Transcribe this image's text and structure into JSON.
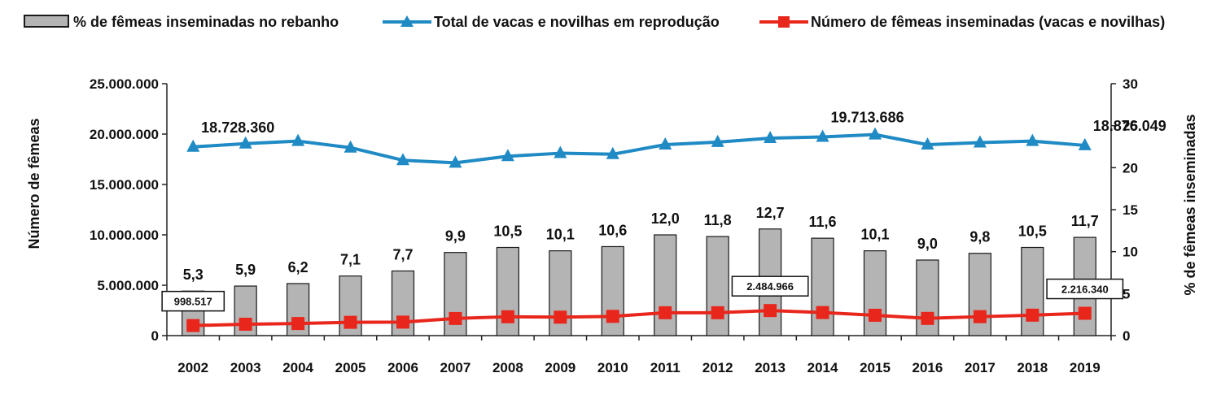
{
  "legend": {
    "bars_label": "% de fêmeas inseminadas no rebanho",
    "total_label": "Total de vacas e novilhas em reprodução",
    "insem_label": "Número de fêmeas inseminadas (vacas e novilhas)"
  },
  "colors": {
    "bar_fill": "#b4b4b4",
    "bar_stroke": "#1a1a1a",
    "total_line": "#1f8ac4",
    "insem_line": "#e8261c"
  },
  "chart_data": {
    "type": "bar+line",
    "categories": [
      "2002",
      "2003",
      "2004",
      "2005",
      "2006",
      "2007",
      "2008",
      "2009",
      "2010",
      "2011",
      "2012",
      "2013",
      "2014",
      "2015",
      "2016",
      "2017",
      "2018",
      "2019"
    ],
    "y_left": {
      "label": "Número de fêmeas",
      "lim": [
        0,
        25000000
      ],
      "ticks": [
        0,
        5000000,
        10000000,
        15000000,
        20000000,
        25000000
      ],
      "tick_labels": [
        "0",
        "5.000.000",
        "10.000.000",
        "15.000.000",
        "20.000.000",
        "25.000.000"
      ]
    },
    "y_right": {
      "label": "% de fêmeas inseminadas",
      "lim": [
        0,
        30
      ],
      "ticks": [
        0,
        5,
        10,
        15,
        20,
        25,
        30
      ],
      "tick_labels": [
        "0",
        "5",
        "10",
        "15",
        "20",
        "25",
        "30"
      ]
    },
    "bars": {
      "name": "% de fêmeas inseminadas no rebanho",
      "axis": "right",
      "values": [
        5.3,
        5.9,
        6.2,
        7.1,
        7.7,
        9.9,
        10.5,
        10.1,
        10.6,
        12.0,
        11.8,
        12.7,
        11.6,
        10.1,
        9.0,
        9.8,
        10.5,
        11.7
      ],
      "labels": [
        "5,3",
        "5,9",
        "6,2",
        "7,1",
        "7,7",
        "9,9",
        "10,5",
        "10,1",
        "10,6",
        "12,0",
        "11,8",
        "12,7",
        "11,6",
        "10,1",
        "9,0",
        "9,8",
        "10,5",
        "11,7"
      ]
    },
    "series": [
      {
        "name": "Total de vacas e novilhas em reprodução",
        "axis": "left",
        "marker": "triangle",
        "values": [
          18728360,
          19050000,
          19300000,
          18650000,
          17400000,
          17150000,
          17800000,
          18100000,
          18000000,
          18950000,
          19200000,
          19600000,
          19713686,
          19950000,
          18950000,
          19150000,
          19300000,
          18876049
        ]
      },
      {
        "name": "Número de fêmeas inseminadas (vacas e novilhas)",
        "axis": "left",
        "marker": "square",
        "values": [
          998517,
          1130000,
          1200000,
          1320000,
          1340000,
          1700000,
          1870000,
          1830000,
          1910000,
          2270000,
          2270000,
          2484966,
          2290000,
          2020000,
          1710000,
          1880000,
          2030000,
          2216340
        ]
      }
    ],
    "annotations": [
      {
        "series": 0,
        "index": 0,
        "text": "18.728.360",
        "boxed": false
      },
      {
        "series": 0,
        "index": 12,
        "text": "19.713.686",
        "boxed": false
      },
      {
        "series": 0,
        "index": 17,
        "text": "18.876.049",
        "boxed": false
      },
      {
        "series": 1,
        "index": 0,
        "text": "998.517",
        "boxed": true
      },
      {
        "series": 1,
        "index": 11,
        "text": "2.484.966",
        "boxed": true
      },
      {
        "series": 1,
        "index": 17,
        "text": "2.216.340",
        "boxed": true
      }
    ],
    "legend_position": "top",
    "grid": false
  }
}
